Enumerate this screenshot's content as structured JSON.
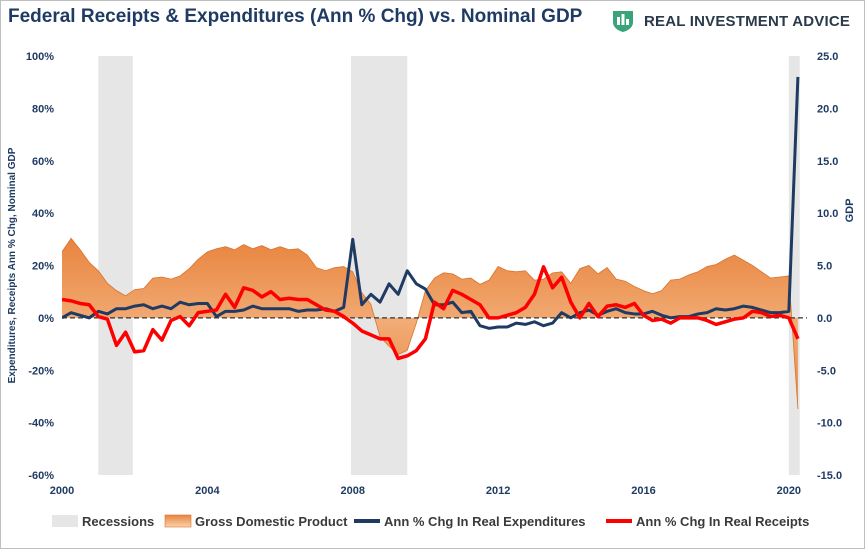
{
  "brand": {
    "name": "REAL INVESTMENT ADVICE",
    "accent": "#3aa37a"
  },
  "chart_data": {
    "type": "line",
    "title": "Federal Receipts & Expenditures (Ann % Chg) vs. Nominal GDP",
    "ylabel": "Expenditures, Receipts Ann % Chg, Nominal GDP",
    "y2label": "GDP",
    "xlim": [
      2000,
      2020.5
    ],
    "ylim": [
      -60,
      100
    ],
    "y2lim": [
      -15,
      25
    ],
    "x_ticks": [
      "2000",
      "2004",
      "2008",
      "2012",
      "2016",
      "2020"
    ],
    "x_tick_values": [
      2000,
      2004,
      2008,
      2012,
      2016,
      2020
    ],
    "y_ticks": [
      "100%",
      "80%",
      "60%",
      "40%",
      "20%",
      "0%",
      "-20%",
      "-40%",
      "-60%"
    ],
    "y_tick_values": [
      100,
      80,
      60,
      40,
      20,
      0,
      -20,
      -40,
      -60
    ],
    "y2_ticks": [
      "25.0",
      "20.0",
      "15.0",
      "10.0",
      "5.0",
      "0.0",
      "-5.0",
      "-10.0",
      "-15.0"
    ],
    "y2_tick_values": [
      25,
      20,
      15,
      10,
      5,
      0,
      -5,
      -10,
      -15
    ],
    "grid": false,
    "zero_line": "dashed",
    "legend_position": "bottom",
    "recessions": [
      [
        2001.0,
        2001.95
      ],
      [
        2007.95,
        2009.5
      ],
      [
        2020.0,
        2020.3
      ]
    ],
    "colors": {
      "recession": "#e6e6e6",
      "gdp_dark": "#e8843e",
      "gdp_light": "#fbd2ab",
      "gdp_stroke": "#d9732e",
      "expenditures": "#1f3b63",
      "receipts": "#ff0000",
      "axis_text": "#1f3b63"
    },
    "legend": [
      {
        "name": "Recessions",
        "kind": "recession"
      },
      {
        "name": "Gross Domestic Product",
        "kind": "area"
      },
      {
        "name": "Ann % Chg In Real Expenditures",
        "kind": "expenditures"
      },
      {
        "name": "Ann % Chg In Real Receipts",
        "kind": "receipts"
      }
    ],
    "series": [
      {
        "name": "Gross Domestic Product",
        "axis": "right",
        "type": "area",
        "x": [
          2000.0,
          2000.25,
          2000.5,
          2000.75,
          2001.0,
          2001.25,
          2001.5,
          2001.75,
          2002.0,
          2002.25,
          2002.5,
          2002.75,
          2003.0,
          2003.25,
          2003.5,
          2003.75,
          2004.0,
          2004.25,
          2004.5,
          2004.75,
          2005.0,
          2005.25,
          2005.5,
          2005.75,
          2006.0,
          2006.25,
          2006.5,
          2006.75,
          2007.0,
          2007.25,
          2007.5,
          2007.75,
          2008.0,
          2008.25,
          2008.5,
          2008.75,
          2009.0,
          2009.25,
          2009.5,
          2009.75,
          2010.0,
          2010.25,
          2010.5,
          2010.75,
          2011.0,
          2011.25,
          2011.5,
          2011.75,
          2012.0,
          2012.25,
          2012.5,
          2012.75,
          2013.0,
          2013.25,
          2013.5,
          2013.75,
          2014.0,
          2014.25,
          2014.5,
          2014.75,
          2015.0,
          2015.25,
          2015.5,
          2015.75,
          2016.0,
          2016.25,
          2016.5,
          2016.75,
          2017.0,
          2017.25,
          2017.5,
          2017.75,
          2018.0,
          2018.25,
          2018.5,
          2018.75,
          2019.0,
          2019.25,
          2019.5,
          2019.75,
          2020.0,
          2020.25
        ],
        "values": [
          6.3,
          7.6,
          6.5,
          5.3,
          4.5,
          3.3,
          2.6,
          2.1,
          2.7,
          2.8,
          3.8,
          3.9,
          3.7,
          4.0,
          4.7,
          5.6,
          6.3,
          6.6,
          6.8,
          6.5,
          7.0,
          6.6,
          6.9,
          6.5,
          6.8,
          6.5,
          6.6,
          6.0,
          4.8,
          4.5,
          4.8,
          4.9,
          4.4,
          2.4,
          1.3,
          -1.8,
          -2.7,
          -3.5,
          -3.1,
          -0.5,
          2.6,
          3.8,
          4.3,
          4.2,
          3.7,
          3.8,
          3.2,
          3.6,
          4.9,
          4.5,
          4.4,
          4.5,
          3.6,
          3.7,
          4.3,
          4.4,
          3.3,
          4.7,
          5.0,
          4.2,
          4.8,
          3.7,
          3.5,
          3.0,
          2.6,
          2.3,
          2.6,
          3.6,
          3.7,
          4.1,
          4.4,
          4.9,
          5.1,
          5.6,
          6.0,
          5.5,
          5.0,
          4.4,
          3.8,
          3.9,
          4.0,
          -8.7
        ]
      },
      {
        "name": "Ann % Chg In Real Expenditures",
        "axis": "left",
        "type": "line",
        "x": [
          2000.0,
          2000.25,
          2000.5,
          2000.75,
          2001.0,
          2001.25,
          2001.5,
          2001.75,
          2002.0,
          2002.25,
          2002.5,
          2002.75,
          2003.0,
          2003.25,
          2003.5,
          2003.75,
          2004.0,
          2004.25,
          2004.5,
          2004.75,
          2005.0,
          2005.25,
          2005.5,
          2005.75,
          2006.0,
          2006.25,
          2006.5,
          2006.75,
          2007.0,
          2007.25,
          2007.5,
          2007.75,
          2008.0,
          2008.25,
          2008.5,
          2008.75,
          2009.0,
          2009.25,
          2009.5,
          2009.75,
          2010.0,
          2010.25,
          2010.5,
          2010.75,
          2011.0,
          2011.25,
          2011.5,
          2011.75,
          2012.0,
          2012.25,
          2012.5,
          2012.75,
          2013.0,
          2013.25,
          2013.5,
          2013.75,
          2014.0,
          2014.25,
          2014.5,
          2014.75,
          2015.0,
          2015.25,
          2015.5,
          2015.75,
          2016.0,
          2016.25,
          2016.5,
          2016.75,
          2017.0,
          2017.25,
          2017.5,
          2017.75,
          2018.0,
          2018.25,
          2018.5,
          2018.75,
          2019.0,
          2019.25,
          2019.5,
          2019.75,
          2020.0,
          2020.25
        ],
        "values": [
          0.0,
          2.0,
          1.0,
          0.0,
          2.5,
          1.5,
          3.5,
          3.5,
          4.5,
          5.0,
          3.5,
          4.5,
          3.5,
          6.0,
          5.0,
          5.5,
          5.5,
          0.5,
          2.5,
          2.5,
          3.0,
          4.5,
          3.5,
          3.5,
          3.5,
          3.5,
          2.5,
          3.0,
          3.0,
          3.5,
          2.5,
          4.0,
          30.0,
          5.0,
          9.0,
          6.0,
          13.0,
          9.0,
          18.0,
          13.0,
          11.0,
          5.0,
          5.0,
          6.0,
          2.0,
          2.5,
          -3.0,
          -4.0,
          -3.5,
          -3.5,
          -2.0,
          -2.5,
          -1.5,
          -3.0,
          -2.0,
          2.0,
          0.0,
          2.0,
          3.0,
          1.0,
          2.5,
          3.5,
          2.0,
          1.5,
          1.5,
          2.5,
          1.0,
          0.0,
          0.5,
          0.5,
          1.5,
          2.0,
          3.5,
          3.0,
          3.5,
          4.5,
          4.0,
          3.0,
          2.0,
          2.0,
          2.5,
          92.0
        ]
      },
      {
        "name": "Ann % Chg In Real Receipts",
        "axis": "left",
        "type": "line",
        "x": [
          2000.0,
          2000.25,
          2000.5,
          2000.75,
          2001.0,
          2001.25,
          2001.5,
          2001.75,
          2002.0,
          2002.25,
          2002.5,
          2002.75,
          2003.0,
          2003.25,
          2003.5,
          2003.75,
          2004.0,
          2004.25,
          2004.5,
          2004.75,
          2005.0,
          2005.25,
          2005.5,
          2005.75,
          2006.0,
          2006.25,
          2006.5,
          2006.75,
          2007.0,
          2007.25,
          2007.5,
          2007.75,
          2008.0,
          2008.25,
          2008.5,
          2008.75,
          2009.0,
          2009.25,
          2009.5,
          2009.75,
          2010.0,
          2010.25,
          2010.5,
          2010.75,
          2011.0,
          2011.25,
          2011.5,
          2011.75,
          2012.0,
          2012.25,
          2012.5,
          2012.75,
          2013.0,
          2013.25,
          2013.5,
          2013.75,
          2014.0,
          2014.25,
          2014.5,
          2014.75,
          2015.0,
          2015.25,
          2015.5,
          2015.75,
          2016.0,
          2016.25,
          2016.5,
          2016.75,
          2017.0,
          2017.25,
          2017.5,
          2017.75,
          2018.0,
          2018.25,
          2018.5,
          2018.75,
          2019.0,
          2019.25,
          2019.5,
          2019.75,
          2020.0,
          2020.25
        ],
        "values": [
          7.0,
          6.5,
          5.5,
          5.0,
          0.5,
          -0.5,
          -10.5,
          -5.5,
          -13.0,
          -12.5,
          -4.5,
          -8.5,
          -1.0,
          0.5,
          -3.0,
          2.0,
          2.5,
          3.0,
          9.0,
          4.0,
          11.5,
          10.5,
          8.0,
          10.0,
          7.0,
          7.5,
          7.0,
          7.0,
          5.0,
          3.0,
          2.5,
          0.5,
          -2.0,
          -5.0,
          -6.5,
          -8.0,
          -8.0,
          -15.5,
          -14.5,
          -12.5,
          -8.0,
          6.0,
          3.5,
          10.5,
          9.0,
          7.0,
          5.0,
          0.0,
          0.0,
          1.0,
          2.0,
          4.0,
          9.0,
          19.5,
          11.5,
          15.5,
          6.0,
          0.0,
          5.5,
          0.5,
          4.5,
          5.0,
          4.0,
          5.5,
          1.0,
          -1.0,
          -0.5,
          -2.0,
          0.0,
          0.0,
          0.0,
          -1.0,
          -2.5,
          -1.5,
          -0.5,
          0.0,
          2.5,
          2.0,
          0.5,
          1.0,
          0.0,
          -8.0
        ]
      }
    ]
  }
}
